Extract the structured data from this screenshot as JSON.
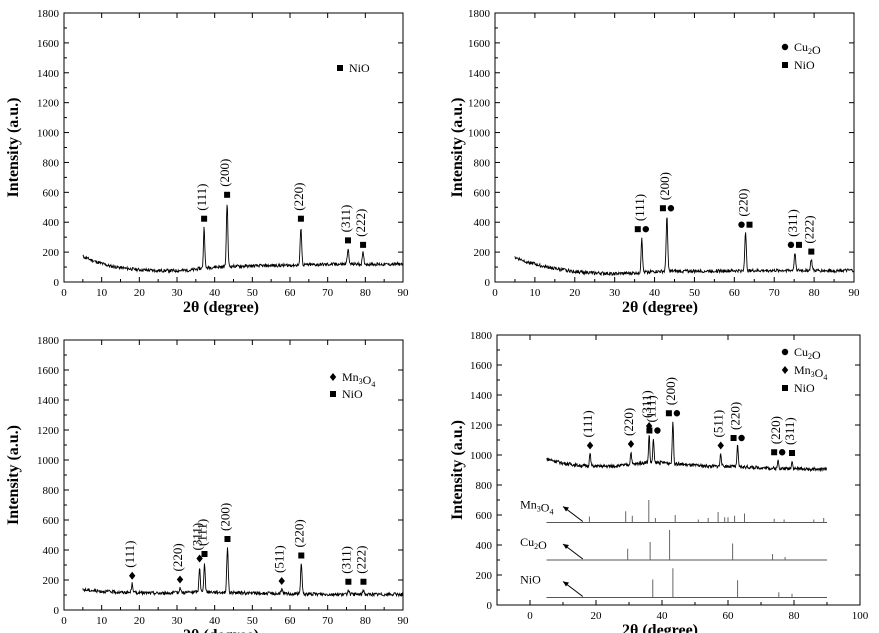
{
  "chart_data": [
    {
      "type": "line",
      "id": "panel-a",
      "xlabel": "2θ (degree)",
      "ylabel": "Intensity (a.u.)",
      "xlim": [
        0,
        90
      ],
      "ylim": [
        0,
        1800
      ],
      "xticks": [
        0,
        10,
        20,
        30,
        40,
        50,
        60,
        70,
        80,
        90
      ],
      "yticks": [
        0,
        200,
        400,
        600,
        800,
        1000,
        1200,
        1400,
        1600,
        1800
      ],
      "legend": [
        {
          "label": "NiO",
          "marker": "square"
        }
      ],
      "baseline": [
        [
          5,
          170
        ],
        [
          8,
          140
        ],
        [
          12,
          108
        ],
        [
          16,
          92
        ],
        [
          20,
          82
        ],
        [
          25,
          76
        ],
        [
          30,
          76
        ],
        [
          34,
          80
        ],
        [
          36,
          90
        ],
        [
          40,
          100
        ],
        [
          45,
          105
        ],
        [
          50,
          107
        ],
        [
          55,
          110
        ],
        [
          60,
          112
        ],
        [
          65,
          115
        ],
        [
          70,
          118
        ],
        [
          75,
          120
        ],
        [
          80,
          120
        ],
        [
          85,
          118
        ],
        [
          90,
          120
        ]
      ],
      "peaks": [
        {
          "x": 37.2,
          "y": 370,
          "w": 0.45,
          "label": "(111)",
          "markers": [
            "square"
          ]
        },
        {
          "x": 43.3,
          "y": 530,
          "w": 0.5,
          "label": "(200)",
          "markers": [
            "square"
          ]
        },
        {
          "x": 62.9,
          "y": 370,
          "w": 0.5,
          "label": "(220)",
          "markers": [
            "square"
          ]
        },
        {
          "x": 75.4,
          "y": 225,
          "w": 0.5,
          "label": "(311)",
          "markers": [
            "square"
          ]
        },
        {
          "x": 79.4,
          "y": 195,
          "w": 0.5,
          "label": "(222)",
          "markers": [
            "square"
          ]
        }
      ]
    },
    {
      "type": "line",
      "id": "panel-b",
      "xlabel": "2θ (degree)",
      "ylabel": "Intensity (a.u.)",
      "xlim": [
        0,
        90
      ],
      "ylim": [
        0,
        1800
      ],
      "xticks": [
        0,
        10,
        20,
        30,
        40,
        50,
        60,
        70,
        80,
        90
      ],
      "yticks": [
        0,
        200,
        400,
        600,
        800,
        1000,
        1200,
        1400,
        1600,
        1800
      ],
      "legend": [
        {
          "label": "Cu2O",
          "marker": "circle"
        },
        {
          "label": "NiO",
          "marker": "square"
        }
      ],
      "baseline": [
        [
          5,
          165
        ],
        [
          8,
          135
        ],
        [
          12,
          105
        ],
        [
          16,
          85
        ],
        [
          20,
          70
        ],
        [
          25,
          60
        ],
        [
          30,
          55
        ],
        [
          34,
          58
        ],
        [
          36,
          62
        ],
        [
          40,
          70
        ],
        [
          45,
          72
        ],
        [
          50,
          73
        ],
        [
          55,
          74
        ],
        [
          60,
          75
        ],
        [
          65,
          76
        ],
        [
          70,
          77
        ],
        [
          75,
          78
        ],
        [
          80,
          77
        ],
        [
          85,
          76
        ],
        [
          90,
          78
        ]
      ],
      "peaks": [
        {
          "x": 36.8,
          "y": 300,
          "w": 0.45,
          "label": "(111)",
          "markers": [
            "square",
            "circle"
          ]
        },
        {
          "x": 43.1,
          "y": 440,
          "w": 0.5,
          "label": "(200)",
          "markers": [
            "square",
            "circle"
          ]
        },
        {
          "x": 62.8,
          "y": 330,
          "w": 0.5,
          "label": "(220)",
          "markers": [
            "circle",
            "square"
          ]
        },
        {
          "x": 75.2,
          "y": 195,
          "w": 0.5,
          "label": "(311)",
          "markers": [
            "circle",
            "square"
          ]
        },
        {
          "x": 79.3,
          "y": 150,
          "w": 0.5,
          "label": "(222)",
          "markers": [
            "square"
          ]
        }
      ]
    },
    {
      "type": "line",
      "id": "panel-c",
      "xlabel": "2θ (degree)",
      "ylabel": "Intensity (a.u.)",
      "xlim": [
        0,
        90
      ],
      "ylim": [
        0,
        1800
      ],
      "xticks": [
        0,
        10,
        20,
        30,
        40,
        50,
        60,
        70,
        80,
        90
      ],
      "yticks": [
        0,
        200,
        400,
        600,
        800,
        1000,
        1200,
        1400,
        1600,
        1800
      ],
      "legend": [
        {
          "label": "Mn3O4",
          "marker": "diamond"
        },
        {
          "label": "NiO",
          "marker": "square"
        }
      ],
      "baseline": [
        [
          5,
          135
        ],
        [
          10,
          125
        ],
        [
          15,
          118
        ],
        [
          20,
          115
        ],
        [
          25,
          112
        ],
        [
          30,
          115
        ],
        [
          35,
          120
        ],
        [
          40,
          120
        ],
        [
          45,
          115
        ],
        [
          50,
          112
        ],
        [
          55,
          110
        ],
        [
          60,
          108
        ],
        [
          65,
          106
        ],
        [
          70,
          105
        ],
        [
          75,
          104
        ],
        [
          80,
          104
        ],
        [
          85,
          104
        ],
        [
          90,
          104
        ]
      ],
      "peaks": [
        {
          "x": 18.1,
          "y": 175,
          "w": 0.5,
          "label": "(111)",
          "markers": [
            "diamond"
          ]
        },
        {
          "x": 30.8,
          "y": 150,
          "w": 0.5,
          "label": "(220)",
          "markers": [
            "diamond"
          ]
        },
        {
          "x": 36.0,
          "y": 290,
          "w": 0.45,
          "label": "(311)",
          "markers": [
            "diamond"
          ]
        },
        {
          "x": 37.3,
          "y": 320,
          "w": 0.45,
          "label": "(111)",
          "markers": [
            "square"
          ]
        },
        {
          "x": 43.4,
          "y": 420,
          "w": 0.5,
          "label": "(200)",
          "markers": [
            "square"
          ]
        },
        {
          "x": 57.8,
          "y": 140,
          "w": 0.5,
          "label": "(511)",
          "markers": [
            "diamond"
          ]
        },
        {
          "x": 63.0,
          "y": 310,
          "w": 0.5,
          "label": "(220)",
          "markers": [
            "square"
          ]
        },
        {
          "x": 75.5,
          "y": 135,
          "w": 0.5,
          "label": "(311)",
          "markers": [
            "square"
          ]
        },
        {
          "x": 79.5,
          "y": 135,
          "w": 0.5,
          "label": "(222)",
          "markers": [
            "square"
          ]
        }
      ]
    },
    {
      "type": "line",
      "id": "panel-d",
      "xlabel": "2θ (degree)",
      "ylabel": "Intensity (a.u.)",
      "xlim": [
        -10,
        100
      ],
      "ylim": [
        0,
        1800
      ],
      "xticks": [
        0,
        20,
        40,
        60,
        80,
        100
      ],
      "yticks": [
        0,
        200,
        400,
        600,
        800,
        1000,
        1200,
        1400,
        1600,
        1800
      ],
      "legend": [
        {
          "label": "Cu2O",
          "marker": "circle"
        },
        {
          "label": "Mn3O4",
          "marker": "diamond"
        },
        {
          "label": "NiO",
          "marker": "square"
        }
      ],
      "sample": {
        "baseline": [
          [
            5,
            975
          ],
          [
            10,
            945
          ],
          [
            15,
            930
          ],
          [
            20,
            925
          ],
          [
            25,
            925
          ],
          [
            30,
            935
          ],
          [
            35,
            950
          ],
          [
            40,
            950
          ],
          [
            45,
            940
          ],
          [
            50,
            930
          ],
          [
            55,
            925
          ],
          [
            60,
            925
          ],
          [
            65,
            920
          ],
          [
            70,
            915
          ],
          [
            75,
            910
          ],
          [
            80,
            910
          ],
          [
            85,
            905
          ],
          [
            90,
            905
          ]
        ],
        "peaks": [
          {
            "x": 18.2,
            "y": 1010,
            "w": 0.5,
            "label": "(111)",
            "markers": [
              "diamond"
            ]
          },
          {
            "x": 30.6,
            "y": 1020,
            "w": 0.5,
            "label": "(220)",
            "markers": [
              "diamond"
            ]
          },
          {
            "x": 36.1,
            "y": 1140,
            "w": 0.45,
            "label": "(311)",
            "markers": [
              "diamond"
            ]
          },
          {
            "x": 37.4,
            "y": 1110,
            "w": 0.45,
            "label": "(111)",
            "markers": [
              "square",
              "circle"
            ]
          },
          {
            "x": 43.3,
            "y": 1225,
            "w": 0.5,
            "label": "(200)",
            "markers": [
              "square",
              "circle"
            ]
          },
          {
            "x": 57.8,
            "y": 1010,
            "w": 0.5,
            "label": "(511)",
            "markers": [
              "diamond"
            ]
          },
          {
            "x": 62.9,
            "y": 1060,
            "w": 0.5,
            "label": "(220)",
            "markers": [
              "square",
              "circle"
            ]
          },
          {
            "x": 75.2,
            "y": 965,
            "w": 0.5,
            "label": "(220)",
            "markers": [
              "square",
              "circle"
            ]
          },
          {
            "x": 79.4,
            "y": 960,
            "w": 0.5,
            "label": "(311)",
            "markers": [
              "square"
            ]
          }
        ]
      },
      "references": [
        {
          "label": "Mn3O4",
          "baseline": 550,
          "lines": [
            [
              18,
              40
            ],
            [
              29,
              75
            ],
            [
              31,
              45
            ],
            [
              36,
              150
            ],
            [
              38,
              30
            ],
            [
              44,
              50
            ],
            [
              51,
              20
            ],
            [
              54,
              30
            ],
            [
              57,
              70
            ],
            [
              59,
              35
            ],
            [
              60,
              35
            ],
            [
              62,
              45
            ],
            [
              65,
              60
            ],
            [
              74,
              25
            ],
            [
              77,
              20
            ],
            [
              86,
              20
            ],
            [
              89,
              30
            ]
          ]
        },
        {
          "label": "Cu2O",
          "baseline": 300,
          "lines": [
            [
              29.6,
              75
            ],
            [
              36.4,
              120
            ],
            [
              42.3,
              200
            ],
            [
              61.4,
              110
            ],
            [
              73.5,
              40
            ],
            [
              77.3,
              20
            ]
          ]
        },
        {
          "label": "NiO",
          "baseline": 50,
          "lines": [
            [
              37.2,
              120
            ],
            [
              43.3,
              195
            ],
            [
              62.9,
              115
            ],
            [
              75.4,
              35
            ],
            [
              79.4,
              25
            ]
          ]
        }
      ]
    }
  ]
}
